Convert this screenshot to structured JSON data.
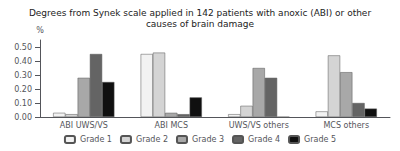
{
  "chart_data": {
    "type": "bar",
    "title": "Degrees from Synek scale applied in 142 patients with anoxic (ABI) or other\ncauses of brain damage",
    "categories": [
      "ABI UWS/VS",
      "ABI MCS",
      "UWS/VS others",
      "MCS others"
    ],
    "series": [
      {
        "name": "Grade 1",
        "color": "#f2f2f2",
        "values": [
          0.03,
          0.45,
          0.02,
          0.04
        ]
      },
      {
        "name": "Grade 2",
        "color": "#d4d4d4",
        "values": [
          0.02,
          0.46,
          0.08,
          0.44
        ]
      },
      {
        "name": "Grade 3",
        "color": "#a8a8a8",
        "values": [
          0.28,
          0.03,
          0.35,
          0.32
        ]
      },
      {
        "name": "Grade 4",
        "color": "#646464",
        "values": [
          0.45,
          0.02,
          0.28,
          0.1
        ]
      },
      {
        "name": "Grade 5",
        "color": "#101010",
        "values": [
          0.25,
          0.14,
          0.0,
          0.06
        ]
      }
    ],
    "ylabel": "%",
    "ylim": [
      0,
      0.55
    ],
    "yticks": [
      {
        "value": 0.0,
        "label": "0.00"
      },
      {
        "value": 0.1,
        "label": "0.10"
      },
      {
        "value": 0.2,
        "label": "0.20"
      },
      {
        "value": 0.3,
        "label": "0.30"
      },
      {
        "value": 0.4,
        "label": "0.40"
      },
      {
        "value": 0.5,
        "label": "0.50"
      }
    ],
    "grid": false,
    "legend": "bottom"
  }
}
